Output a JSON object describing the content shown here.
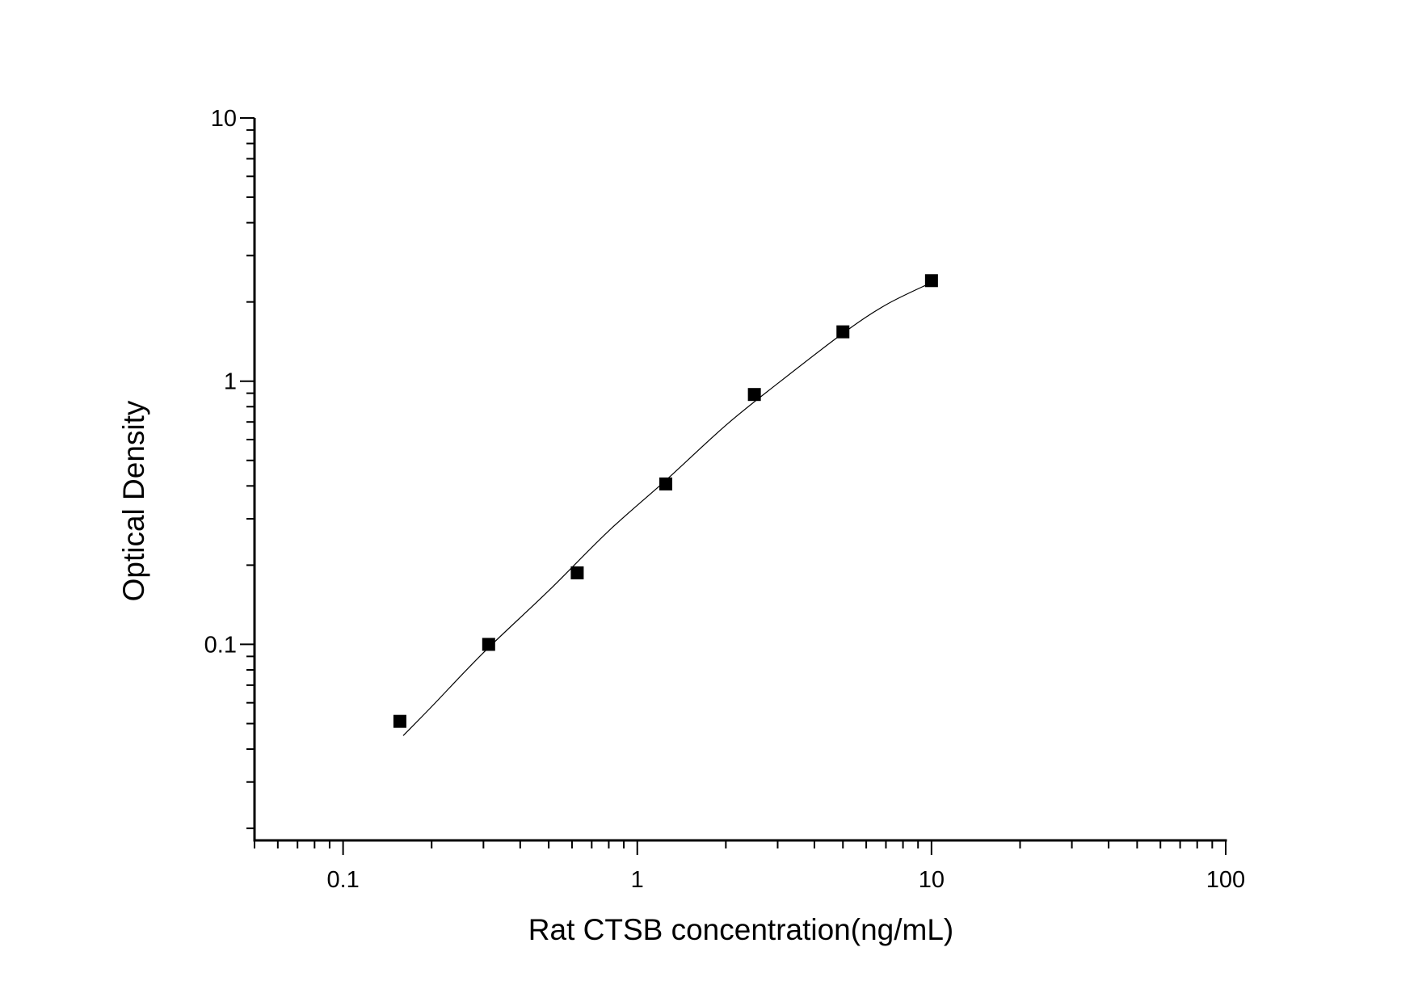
{
  "chart_data": {
    "type": "scatter",
    "title": "",
    "xlabel": "Rat CTSB concentration(ng/mL)",
    "ylabel": "Optical Density",
    "xscale": "log",
    "yscale": "log",
    "xlim": [
      0.05,
      100
    ],
    "ylim": [
      0.018,
      10
    ],
    "xticks": [
      {
        "value": 0.1,
        "label": "0.1"
      },
      {
        "value": 1,
        "label": "1"
      },
      {
        "value": 10,
        "label": "10"
      },
      {
        "value": 100,
        "label": "100"
      }
    ],
    "yticks": [
      {
        "value": 0.1,
        "label": "0.1"
      },
      {
        "value": 1,
        "label": "1"
      },
      {
        "value": 10,
        "label": "10"
      }
    ],
    "grid": false,
    "marker": "square",
    "color": "#000000",
    "series": [
      {
        "x": [
          0.156,
          0.3125,
          0.625,
          1.25,
          2.5,
          5,
          10
        ],
        "y": [
          0.051,
          0.1,
          0.187,
          0.407,
          0.89,
          1.54,
          2.41
        ]
      }
    ],
    "fit_curve": {
      "x": [
        0.16,
        0.2,
        0.3,
        0.5,
        0.8,
        1.25,
        2,
        3,
        5,
        7,
        10
      ],
      "y": [
        0.045,
        0.058,
        0.093,
        0.16,
        0.27,
        0.42,
        0.68,
        0.98,
        1.52,
        1.95,
        2.37
      ]
    }
  }
}
